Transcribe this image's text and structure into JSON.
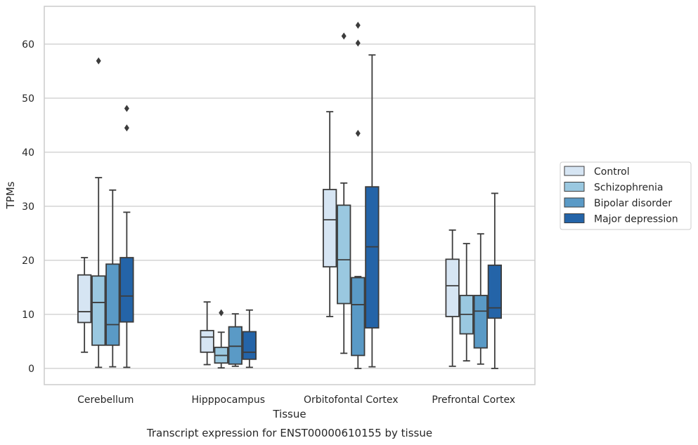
{
  "caption": "Transcript expression for ENST00000610155 by tissue",
  "chart_data": {
    "type": "box",
    "xlabel": "Tissue",
    "ylabel": "TPMs",
    "ylim": [
      -3,
      67
    ],
    "yticks": [
      0,
      10,
      20,
      30,
      40,
      50,
      60
    ],
    "grid": "horizontal",
    "legend_placement": "right",
    "categories": [
      "Cerebellum",
      "Hipppocampus",
      "Orbitofontal Cortex",
      "Prefrontal Cortex"
    ],
    "series": [
      {
        "name": "Control",
        "color": "#d6e5f3",
        "boxes": [
          {
            "whisker_low": 3.0,
            "q1": 8.5,
            "median": 10.5,
            "q3": 17.3,
            "whisker_high": 20.5,
            "outliers": []
          },
          {
            "whisker_low": 0.7,
            "q1": 3.0,
            "median": 5.8,
            "q3": 7.0,
            "whisker_high": 12.3,
            "outliers": []
          },
          {
            "whisker_low": 9.6,
            "q1": 18.8,
            "median": 27.5,
            "q3": 33.1,
            "whisker_high": 47.5,
            "outliers": []
          },
          {
            "whisker_low": 0.4,
            "q1": 9.6,
            "median": 15.3,
            "q3": 20.2,
            "whisker_high": 25.6,
            "outliers": []
          }
        ]
      },
      {
        "name": "Schizophrenia",
        "color": "#9ac8e0",
        "boxes": [
          {
            "whisker_low": 0.2,
            "q1": 4.3,
            "median": 12.2,
            "q3": 17.1,
            "whisker_high": 35.3,
            "outliers": [
              56.9
            ]
          },
          {
            "whisker_low": 0.1,
            "q1": 1.0,
            "median": 2.4,
            "q3": 3.9,
            "whisker_high": 6.7,
            "outliers": [
              10.3
            ]
          },
          {
            "whisker_low": 2.8,
            "q1": 12.0,
            "median": 20.1,
            "q3": 30.2,
            "whisker_high": 34.3,
            "outliers": [
              61.5
            ]
          },
          {
            "whisker_low": 1.4,
            "q1": 6.4,
            "median": 10.0,
            "q3": 13.5,
            "whisker_high": 23.1,
            "outliers": []
          }
        ]
      },
      {
        "name": "Bipolar disorder",
        "color": "#5a9ac6",
        "boxes": [
          {
            "whisker_low": 0.3,
            "q1": 4.3,
            "median": 8.1,
            "q3": 19.3,
            "whisker_high": 33.0,
            "outliers": []
          },
          {
            "whisker_low": 0.4,
            "q1": 0.8,
            "median": 4.1,
            "q3": 7.7,
            "whisker_high": 10.1,
            "outliers": []
          },
          {
            "whisker_low": 0.0,
            "q1": 2.4,
            "median": 11.8,
            "q3": 16.8,
            "whisker_high": 17.0,
            "outliers": [
              43.5,
              60.2,
              63.5
            ]
          },
          {
            "whisker_low": 0.8,
            "q1": 3.8,
            "median": 10.6,
            "q3": 13.5,
            "whisker_high": 24.9,
            "outliers": []
          }
        ]
      },
      {
        "name": "Major depression",
        "color": "#2464a8",
        "boxes": [
          {
            "whisker_low": 0.2,
            "q1": 8.6,
            "median": 13.4,
            "q3": 20.5,
            "whisker_high": 28.9,
            "outliers": [
              44.5,
              48.1
            ]
          },
          {
            "whisker_low": 0.2,
            "q1": 1.7,
            "median": 3.0,
            "q3": 6.8,
            "whisker_high": 10.8,
            "outliers": []
          },
          {
            "whisker_low": 0.3,
            "q1": 7.5,
            "median": 22.5,
            "q3": 33.6,
            "whisker_high": 58.0,
            "outliers": []
          },
          {
            "whisker_low": 0.0,
            "q1": 9.3,
            "median": 11.2,
            "q3": 19.1,
            "whisker_high": 32.4,
            "outliers": []
          }
        ]
      }
    ]
  }
}
